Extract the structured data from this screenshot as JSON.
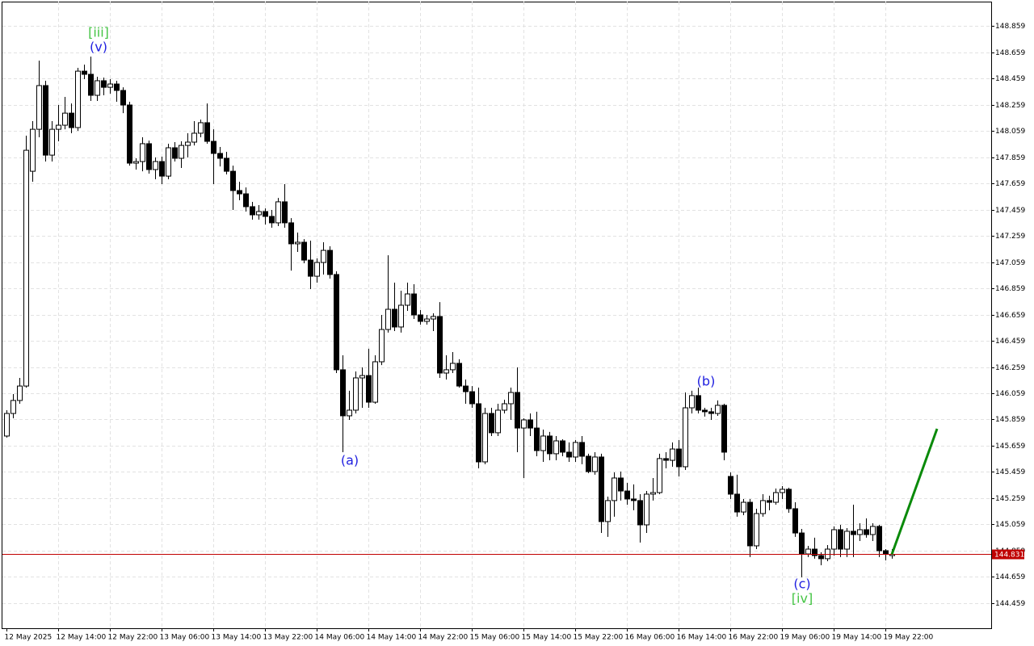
{
  "chart_data": {
    "type": "candlestick",
    "categories": [
      "12 May 2025",
      null,
      null,
      null,
      null,
      null,
      null,
      null,
      "12 May 14:00",
      null,
      null,
      null,
      null,
      null,
      null,
      null,
      "12 May 22:00",
      null,
      null,
      null,
      null,
      null,
      null,
      null,
      "13 May 06:00",
      null,
      null,
      null,
      null,
      null,
      null,
      null,
      "13 May 14:00",
      null,
      null,
      null,
      null,
      null,
      null,
      null,
      "13 May 22:00",
      null,
      null,
      null,
      null,
      null,
      null,
      null,
      "14 May 06:00",
      null,
      null,
      null,
      null,
      null,
      null,
      null,
      "14 May 14:00",
      null,
      null,
      null,
      null,
      null,
      null,
      null,
      "14 May 22:00",
      null,
      null,
      null,
      null,
      null,
      null,
      null,
      "15 May 06:00",
      null,
      null,
      null,
      null,
      null,
      null,
      null,
      "15 May 14:00",
      null,
      null,
      null,
      null,
      null,
      null,
      null,
      "15 May 22:00",
      null,
      null,
      null,
      null,
      null,
      null,
      null,
      "16 May 06:00",
      null,
      null,
      null,
      null,
      null,
      null,
      null,
      "16 May 14:00",
      null,
      null,
      null,
      null,
      null,
      null,
      null,
      "16 May 22:00",
      null,
      null,
      null,
      null,
      null,
      null,
      null,
      "19 May 06:00",
      null,
      null,
      null,
      null,
      null,
      null,
      null,
      "19 May 14:00",
      null,
      null,
      null,
      null,
      null,
      null,
      null,
      "19 May 22:00",
      null
    ],
    "open": [
      145.733,
      145.905,
      146.004,
      146.114,
      147.751,
      148.071,
      148.404,
      147.874,
      148.071,
      148.102,
      148.194,
      148.084,
      148.514,
      148.49,
      148.33,
      148.441,
      148.391,
      148.416,
      148.367,
      148.256,
      147.813,
      147.825,
      147.961,
      147.764,
      147.825,
      147.714,
      147.93,
      147.85,
      147.948,
      147.973,
      148.041,
      148.121,
      147.979,
      147.887,
      147.85,
      147.751,
      147.604,
      147.579,
      147.481,
      147.419,
      147.444,
      147.407,
      147.358,
      147.518,
      147.358,
      147.198,
      147.21,
      147.074,
      146.951,
      147.056,
      147.148,
      146.964,
      146.238,
      145.887,
      145.93,
      146.176,
      146.194,
      145.991,
      146.299,
      146.545,
      146.699,
      146.564,
      146.73,
      146.816,
      146.656,
      146.607,
      146.625,
      146.644,
      146.213,
      146.238,
      146.287,
      146.114,
      146.071,
      145.979,
      145.536,
      145.905,
      145.758,
      145.93,
      145.979,
      146.065,
      145.794,
      145.856,
      145.794,
      145.622,
      145.733,
      145.598,
      145.696,
      145.61,
      145.573,
      145.684,
      145.579,
      145.462,
      145.573,
      145.081,
      145.241,
      145.413,
      145.314,
      145.253,
      145.241,
      145.056,
      145.29,
      145.302,
      145.561,
      145.548,
      145.634,
      145.499,
      145.948,
      146.041,
      145.93,
      145.918,
      145.905,
      145.967,
      145.425,
      145.29,
      145.154,
      145.228,
      144.896,
      145.142,
      145.241,
      145.228,
      145.302,
      145.327,
      145.179,
      144.994,
      144.834,
      144.871,
      144.822,
      144.798,
      144.871,
      145.019,
      144.871,
      145.007,
      144.982,
      145.019,
      144.982,
      145.044,
      144.859,
      144.822
    ],
    "high": [
      145.93,
      146.053,
      146.176,
      148.022,
      148.133,
      148.594,
      148.441,
      148.133,
      148.256,
      148.318,
      148.268,
      148.539,
      148.564,
      148.625,
      148.471,
      148.465,
      148.453,
      148.441,
      148.391,
      148.281,
      147.85,
      148.01,
      147.985,
      147.856,
      147.862,
      147.961,
      147.973,
      147.979,
      148.041,
      148.133,
      148.145,
      148.268,
      148.071,
      147.936,
      147.899,
      147.794,
      147.671,
      147.628,
      147.518,
      147.493,
      147.468,
      147.456,
      147.548,
      147.653,
      147.394,
      147.284,
      147.234,
      147.222,
      147.087,
      147.21,
      147.179,
      146.988,
      146.348,
      146.078,
      146.225,
      146.256,
      146.398,
      146.348,
      146.656,
      147.111,
      146.902,
      146.841,
      146.902,
      146.89,
      146.693,
      146.656,
      146.668,
      146.754,
      146.348,
      146.373,
      146.318,
      146.164,
      146.114,
      146.102,
      145.948,
      145.948,
      145.979,
      146.01,
      146.102,
      146.256,
      145.868,
      145.905,
      145.918,
      145.782,
      145.764,
      145.733,
      145.708,
      145.684,
      145.702,
      145.733,
      145.598,
      145.61,
      145.598,
      145.271,
      145.456,
      145.462,
      145.376,
      145.364,
      145.29,
      145.314,
      145.413,
      145.598,
      145.61,
      145.684,
      145.702,
      146.065,
      146.078,
      146.102,
      145.948,
      145.948,
      146.004,
      145.979,
      145.456,
      145.438,
      145.253,
      145.253,
      145.179,
      145.29,
      145.278,
      145.333,
      145.351,
      145.339,
      145.228,
      145.025,
      144.896,
      144.958,
      144.847,
      144.902,
      145.044,
      145.056,
      145.031,
      145.21,
      145.068,
      145.105,
      145.068,
      145.056,
      144.871,
      144.871
    ],
    "low": [
      145.721,
      145.868,
      145.979,
      146.102,
      147.671,
      148.01,
      147.825,
      147.825,
      147.979,
      148.071,
      148.041,
      148.059,
      148.453,
      148.287,
      148.287,
      148.33,
      148.342,
      148.281,
      148.194,
      147.794,
      147.764,
      147.751,
      147.733,
      147.69,
      147.653,
      147.69,
      147.825,
      147.776,
      147.856,
      147.948,
      148.01,
      147.961,
      147.653,
      147.788,
      147.727,
      147.456,
      147.53,
      147.444,
      147.382,
      147.382,
      147.345,
      147.321,
      147.333,
      147.321,
      146.994,
      147.136,
      147.05,
      146.853,
      146.902,
      146.964,
      146.933,
      146.213,
      145.61,
      145.856,
      145.905,
      145.948,
      145.948,
      145.979,
      146.274,
      146.521,
      146.533,
      146.521,
      146.687,
      146.625,
      146.582,
      146.582,
      146.533,
      146.176,
      146.164,
      146.213,
      146.102,
      145.979,
      145.948,
      145.487,
      145.518,
      145.733,
      145.733,
      145.905,
      145.856,
      145.61,
      145.413,
      145.733,
      145.579,
      145.536,
      145.548,
      145.548,
      145.579,
      145.536,
      145.536,
      145.518,
      145.45,
      145.438,
      144.994,
      144.964,
      145.118,
      145.241,
      145.21,
      145.167,
      144.921,
      144.994,
      145.241,
      145.29,
      145.487,
      145.499,
      145.425,
      145.474,
      145.905,
      145.905,
      145.881,
      145.856,
      145.887,
      145.548,
      145.253,
      145.118,
      145.13,
      144.81,
      144.871,
      145.118,
      145.167,
      145.21,
      145.253,
      145.148,
      144.964,
      144.656,
      144.81,
      144.798,
      144.748,
      144.779,
      144.822,
      144.81,
      144.81,
      144.81,
      144.933,
      144.958,
      144.933,
      144.81,
      144.785,
      144.798
    ],
    "close": [
      145.905,
      146.004,
      146.114,
      147.911,
      148.071,
      148.404,
      147.874,
      148.071,
      148.102,
      148.194,
      148.084,
      148.514,
      148.49,
      148.33,
      148.441,
      148.391,
      148.416,
      148.367,
      148.256,
      147.813,
      147.825,
      147.961,
      147.764,
      147.825,
      147.714,
      147.93,
      147.85,
      147.948,
      147.973,
      148.041,
      148.121,
      147.979,
      147.887,
      147.85,
      147.751,
      147.604,
      147.579,
      147.481,
      147.419,
      147.444,
      147.407,
      147.358,
      147.518,
      147.358,
      147.198,
      147.21,
      147.074,
      146.951,
      147.056,
      147.148,
      146.964,
      146.238,
      145.887,
      145.93,
      146.176,
      146.194,
      145.991,
      146.299,
      146.545,
      146.699,
      146.564,
      146.73,
      146.816,
      146.656,
      146.607,
      146.625,
      146.644,
      146.213,
      146.238,
      146.287,
      146.114,
      146.071,
      145.979,
      145.536,
      145.905,
      145.758,
      145.93,
      145.979,
      146.065,
      145.794,
      145.856,
      145.794,
      145.622,
      145.733,
      145.598,
      145.696,
      145.61,
      145.573,
      145.684,
      145.579,
      145.462,
      145.573,
      145.081,
      145.241,
      145.413,
      145.314,
      145.253,
      145.241,
      145.056,
      145.29,
      145.302,
      145.561,
      145.548,
      145.634,
      145.499,
      145.948,
      146.041,
      145.93,
      145.918,
      145.905,
      145.967,
      145.61,
      145.29,
      145.154,
      145.228,
      144.896,
      145.142,
      145.241,
      145.228,
      145.302,
      145.327,
      145.179,
      144.994,
      144.834,
      144.871,
      144.822,
      144.798,
      144.871,
      145.019,
      144.871,
      145.007,
      144.982,
      145.019,
      144.982,
      145.044,
      144.859,
      144.834,
      144.831
    ],
    "up_color": "#ffffff",
    "down_color": "#000000",
    "ylim": [
      144.268,
      149.044
    ],
    "yticks": [
      144.459,
      144.659,
      144.859,
      145.059,
      145.259,
      145.459,
      145.659,
      145.859,
      146.059,
      146.259,
      146.459,
      146.659,
      146.859,
      147.059,
      147.259,
      147.459,
      147.659,
      147.859,
      148.059,
      148.259,
      148.459,
      148.659,
      148.859
    ],
    "grid": true,
    "current_price": 144.831,
    "current_price_color": "#c00000",
    "forecast": {
      "color": "#0a8a0a",
      "x": [
        137,
        144
      ],
      "values": [
        144.831,
        145.788
      ]
    },
    "annotations": [
      {
        "text": "[iii]",
        "color": "#44c444"
      },
      {
        "text": "(v)",
        "color": "#2020e0"
      },
      {
        "text": "(a)",
        "color": "#2020e0"
      },
      {
        "text": "(b)",
        "color": "#2020e0"
      },
      {
        "text": "(c)",
        "color": "#2020e0"
      },
      {
        "text": "[iv]",
        "color": "#44c444"
      }
    ]
  }
}
